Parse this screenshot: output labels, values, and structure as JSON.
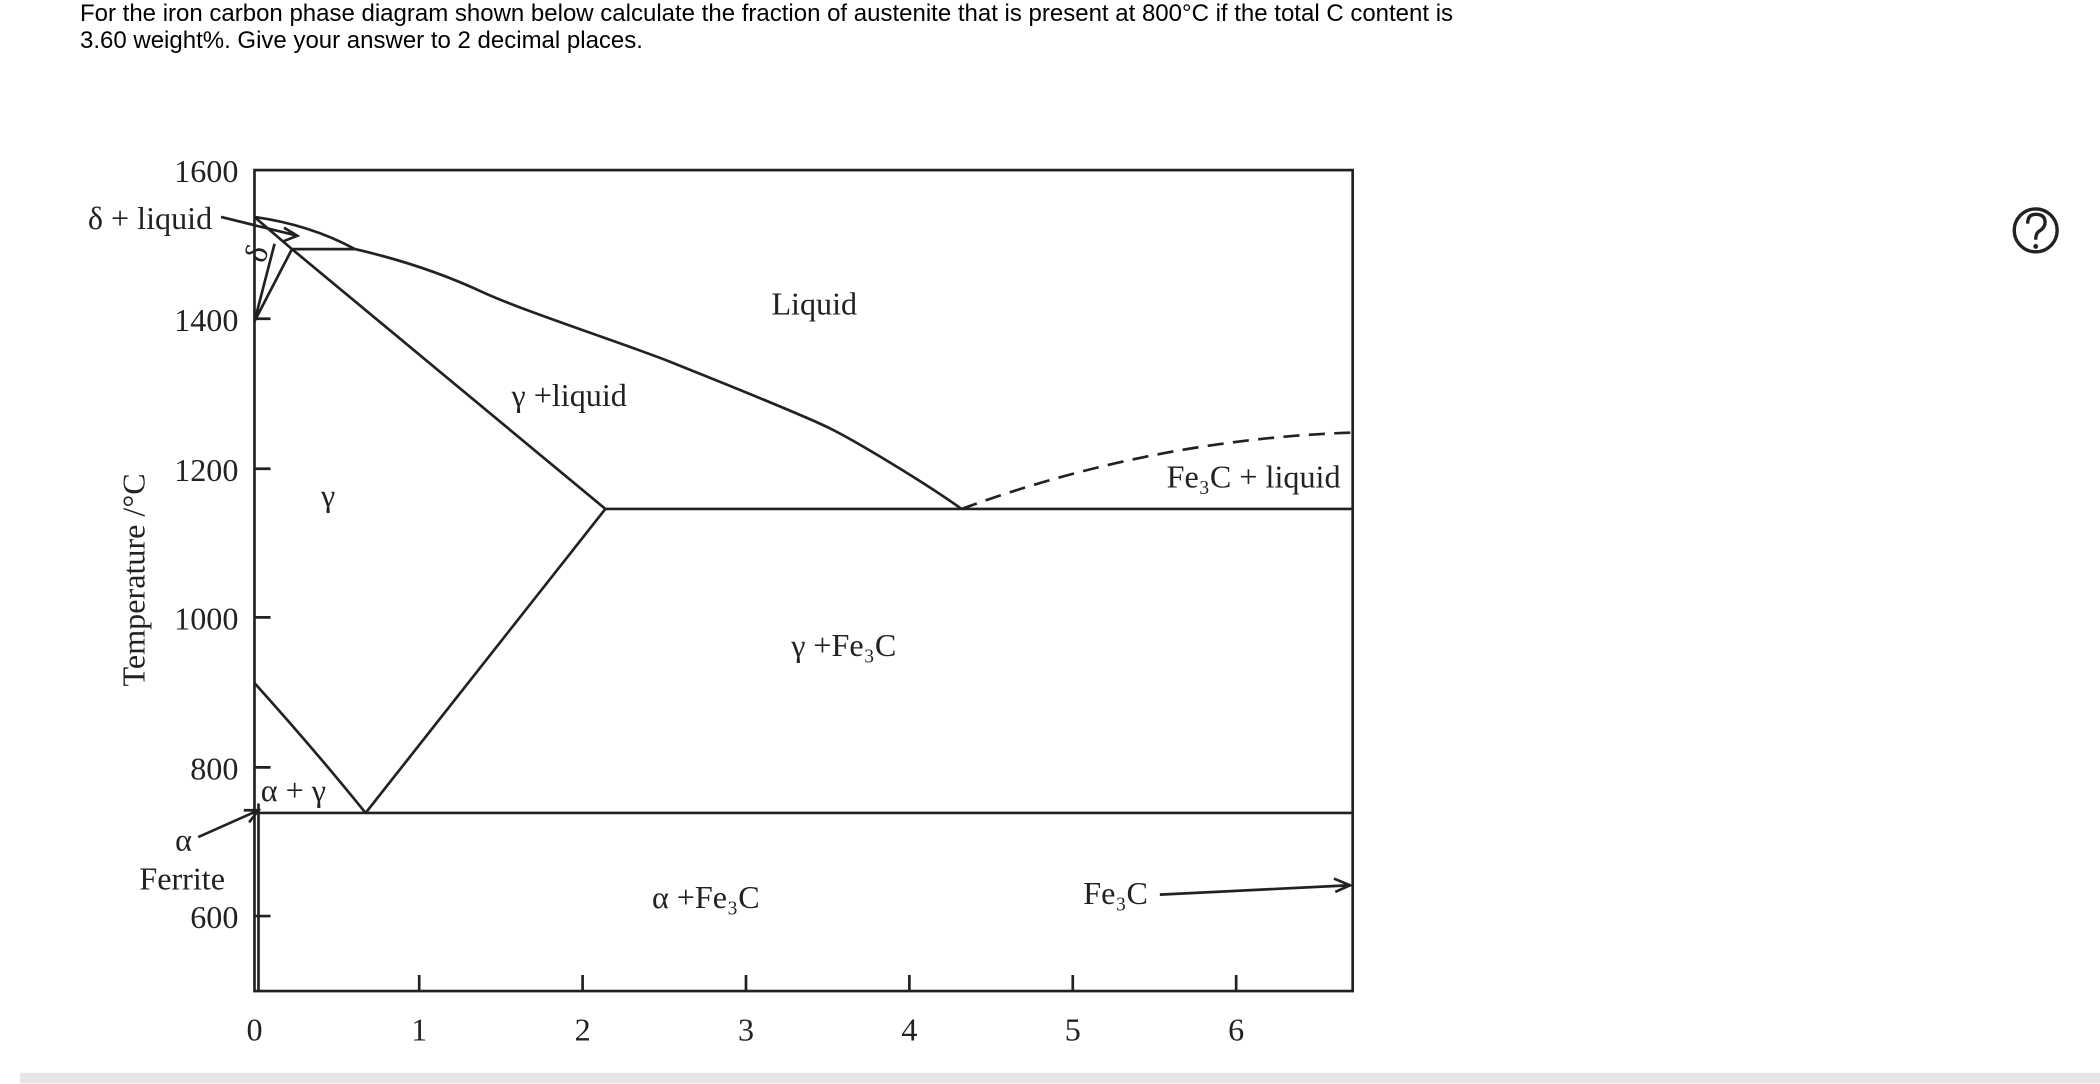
{
  "question": {
    "lines": [
      "For the iron carbon phase diagram shown below calculate the fraction of austenite that is present at 800°C if the total C content is",
      "3.60 weight%. Give your answer to 2 decimal places."
    ]
  },
  "diagram": {
    "y_axis_label": "Temperature /°C",
    "y_tick_labels": [
      "1600",
      "1400",
      "1200",
      "1000",
      "800",
      "600"
    ],
    "x_tick_labels": [
      "0",
      "1",
      "2",
      "3",
      "4",
      "5",
      "6"
    ],
    "region_labels": [
      "δ + liquid",
      "δ",
      "Liquid",
      "γ +liquid",
      "γ",
      "Fe₃C + liquid",
      "γ +Fe₃C",
      "α + γ",
      "α",
      "Ferrite",
      "α +Fe₃C",
      "Fe₃C"
    ]
  }
}
